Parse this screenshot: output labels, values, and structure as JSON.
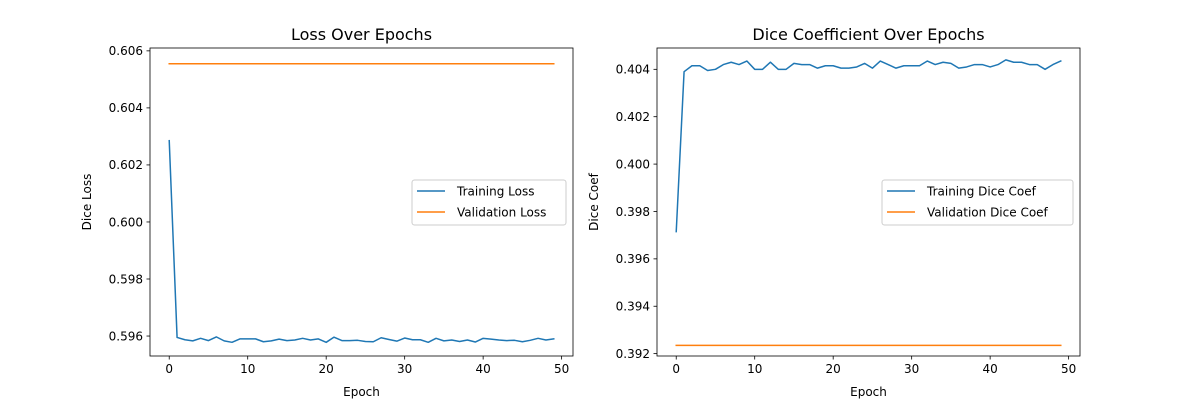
{
  "chart_data": [
    {
      "type": "line",
      "title": "Loss Over Epochs",
      "xlabel": "Epoch",
      "ylabel": "Dice Loss",
      "xlim": [
        -2.45,
        51.45
      ],
      "ylim": [
        0.5953,
        0.6061
      ],
      "xticks": [
        0,
        10,
        20,
        30,
        40,
        50
      ],
      "yticks": [
        0.596,
        0.598,
        0.6,
        0.602,
        0.604,
        0.606
      ],
      "ytick_labels": [
        "0.596",
        "0.598",
        "0.600",
        "0.602",
        "0.604",
        "0.606"
      ],
      "grid": false,
      "legend_position": "center-right",
      "series": [
        {
          "name": "Training Loss",
          "color": "#1f77b4",
          "values": [
            0.60285,
            0.59595,
            0.59587,
            0.59583,
            0.59592,
            0.59584,
            0.59597,
            0.59583,
            0.59578,
            0.5959,
            0.5959,
            0.5959,
            0.5958,
            0.59583,
            0.59589,
            0.59584,
            0.59586,
            0.59592,
            0.59586,
            0.5959,
            0.59578,
            0.59596,
            0.59584,
            0.59584,
            0.59585,
            0.59581,
            0.5958,
            0.59594,
            0.59588,
            0.59582,
            0.59593,
            0.59587,
            0.59587,
            0.59578,
            0.59592,
            0.59583,
            0.59586,
            0.59581,
            0.59586,
            0.59579,
            0.59592,
            0.59589,
            0.59586,
            0.59584,
            0.59585,
            0.5958,
            0.59585,
            0.59592,
            0.59586,
            0.5959
          ]
        },
        {
          "name": "Validation Loss",
          "color": "#ff7f0e",
          "values": [
            0.60555,
            0.60555,
            0.60555,
            0.60555,
            0.60555,
            0.60555,
            0.60555,
            0.60555,
            0.60555,
            0.60555,
            0.60555,
            0.60555,
            0.60555,
            0.60555,
            0.60555,
            0.60555,
            0.60555,
            0.60555,
            0.60555,
            0.60555,
            0.60555,
            0.60555,
            0.60555,
            0.60555,
            0.60555,
            0.60555,
            0.60555,
            0.60555,
            0.60555,
            0.60555,
            0.60555,
            0.60555,
            0.60555,
            0.60555,
            0.60555,
            0.60555,
            0.60555,
            0.60555,
            0.60555,
            0.60555,
            0.60555,
            0.60555,
            0.60555,
            0.60555,
            0.60555,
            0.60555,
            0.60555,
            0.60555,
            0.60555,
            0.60555
          ]
        }
      ]
    },
    {
      "type": "line",
      "title": "Dice Coefficient Over Epochs",
      "xlabel": "Epoch",
      "ylabel": "Dice Coef",
      "xlim": [
        -2.45,
        51.45
      ],
      "ylim": [
        0.3919,
        0.4049
      ],
      "xticks": [
        0,
        10,
        20,
        30,
        40,
        50
      ],
      "yticks": [
        0.392,
        0.394,
        0.396,
        0.398,
        0.4,
        0.402,
        0.404
      ],
      "ytick_labels": [
        "0.392",
        "0.394",
        "0.396",
        "0.398",
        "0.400",
        "0.402",
        "0.404"
      ],
      "grid": false,
      "legend_position": "center-right",
      "series": [
        {
          "name": "Training Dice Coef",
          "color": "#1f77b4",
          "values": [
            0.39715,
            0.4039,
            0.40415,
            0.40415,
            0.40395,
            0.404,
            0.4042,
            0.4043,
            0.4042,
            0.40435,
            0.404,
            0.404,
            0.4043,
            0.404,
            0.404,
            0.40425,
            0.4042,
            0.4042,
            0.40405,
            0.40415,
            0.40415,
            0.40405,
            0.40405,
            0.4041,
            0.40425,
            0.40405,
            0.40435,
            0.4042,
            0.40405,
            0.40415,
            0.40415,
            0.40415,
            0.40435,
            0.4042,
            0.4043,
            0.40425,
            0.40405,
            0.4041,
            0.4042,
            0.4042,
            0.4041,
            0.4042,
            0.4044,
            0.4043,
            0.4043,
            0.4042,
            0.4042,
            0.404,
            0.4042,
            0.40435
          ]
        },
        {
          "name": "Validation Dice Coef",
          "color": "#ff7f0e",
          "values": [
            0.39235,
            0.39235,
            0.39235,
            0.39235,
            0.39235,
            0.39235,
            0.39235,
            0.39235,
            0.39235,
            0.39235,
            0.39235,
            0.39235,
            0.39235,
            0.39235,
            0.39235,
            0.39235,
            0.39235,
            0.39235,
            0.39235,
            0.39235,
            0.39235,
            0.39235,
            0.39235,
            0.39235,
            0.39235,
            0.39235,
            0.39235,
            0.39235,
            0.39235,
            0.39235,
            0.39235,
            0.39235,
            0.39235,
            0.39235,
            0.39235,
            0.39235,
            0.39235,
            0.39235,
            0.39235,
            0.39235,
            0.39235,
            0.39235,
            0.39235,
            0.39235,
            0.39235,
            0.39235,
            0.39235,
            0.39235,
            0.39235,
            0.39235
          ]
        }
      ]
    }
  ]
}
